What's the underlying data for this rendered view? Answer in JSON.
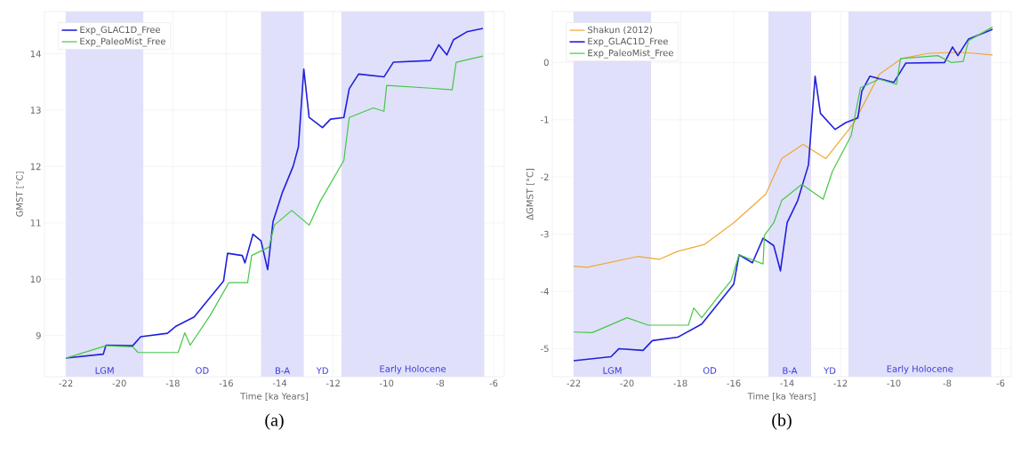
{
  "chart_data": [
    {
      "type": "line",
      "xlabel": "Time [ka Years]",
      "ylabel": "GMST [°C]",
      "xlim": [
        -22.8,
        -5.6
      ],
      "ylim": [
        8.27,
        14.75
      ],
      "xticks": [
        -22,
        -20,
        -18,
        -16,
        -14,
        -12,
        -10,
        -8,
        -6
      ],
      "yticks": [
        9,
        10,
        11,
        12,
        13,
        14
      ],
      "grid": true,
      "legend": "top left",
      "marker": "none",
      "line_style": "solid",
      "bands": [
        {
          "axis": "x",
          "from": -22,
          "to": -19.1,
          "label": "LGM",
          "color": "#e0e0fa"
        },
        {
          "axis": "x",
          "from": -14.7,
          "to": -13.1,
          "label": "B-A",
          "color": "#e0e0fa"
        },
        {
          "axis": "x",
          "from": -11.7,
          "to": -6.35,
          "label": "Early Holocene",
          "color": "#e0e0fa"
        }
      ],
      "annotations": [
        "OD",
        "YD",
        "(a)"
      ],
      "series": [
        {
          "name": "Exp_GLAC1D_Free",
          "color": "#2020dc",
          "x": [
            -22,
            -20.6,
            -20.5,
            -19.5,
            -19.2,
            -18.2,
            -17.9,
            -17.2,
            -16.1,
            -15.95,
            -15.4,
            -15.3,
            -15.0,
            -14.7,
            -14.45,
            -14.25,
            -13.9,
            -13.5,
            -13.3,
            -13.1,
            -12.9,
            -12.4,
            -12.1,
            -11.6,
            -11.4,
            -11.05,
            -10.1,
            -9.75,
            -8.36,
            -8.05,
            -7.75,
            -7.5,
            -7.0,
            -6.4
          ],
          "values": [
            8.6,
            8.67,
            8.83,
            8.82,
            8.98,
            9.04,
            9.16,
            9.33,
            9.97,
            10.46,
            10.42,
            10.29,
            10.8,
            10.68,
            10.17,
            11.02,
            11.54,
            12.0,
            12.35,
            13.73,
            12.87,
            12.69,
            12.84,
            12.87,
            13.38,
            13.64,
            13.59,
            13.85,
            13.88,
            14.16,
            13.98,
            14.25,
            14.39,
            14.45
          ]
        },
        {
          "name": "Exp_PaleoMist_Free",
          "color": "#44c844",
          "x": [
            -22,
            -20.5,
            -19.5,
            -19.3,
            -17.8,
            -17.55,
            -17.35,
            -16.6,
            -15.9,
            -15.2,
            -15.05,
            -14.4,
            -14.2,
            -13.55,
            -12.9,
            -12.5,
            -11.6,
            -11.4,
            -10.5,
            -10.1,
            -10.0,
            -8.36,
            -7.55,
            -7.4,
            -6.4
          ],
          "values": [
            8.6,
            8.82,
            8.8,
            8.7,
            8.7,
            9.05,
            8.83,
            9.36,
            9.94,
            9.94,
            10.42,
            10.57,
            10.96,
            11.22,
            10.96,
            11.37,
            12.11,
            12.87,
            13.04,
            12.98,
            13.44,
            13.39,
            13.36,
            13.85,
            13.96
          ]
        }
      ]
    },
    {
      "type": "line",
      "xlabel": "Time [ka Years]",
      "ylabel": "ΔGMST [°C]",
      "xlim": [
        -22.8,
        -5.6
      ],
      "ylim": [
        -5.49,
        0.89
      ],
      "xticks": [
        -22,
        -20,
        -18,
        -16,
        -14,
        -12,
        -10,
        -8,
        -6
      ],
      "yticks": [
        -5,
        -4,
        -3,
        -2,
        -1,
        0
      ],
      "grid": true,
      "legend": "top left",
      "marker": "none",
      "line_style": "solid",
      "bands": [
        {
          "axis": "x",
          "from": -22,
          "to": -19.1,
          "label": "LGM",
          "color": "#e0e0fa"
        },
        {
          "axis": "x",
          "from": -14.7,
          "to": -13.1,
          "label": "B-A",
          "color": "#e0e0fa"
        },
        {
          "axis": "x",
          "from": -11.7,
          "to": -6.35,
          "label": "Early Holocene",
          "color": "#e0e0fa"
        }
      ],
      "annotations": [
        "OD",
        "YD",
        "(b)"
      ],
      "series": [
        {
          "name": "Shakun (2012)",
          "color": "#f0a830",
          "x": [
            -22,
            -21.5,
            -19.6,
            -18.8,
            -18.1,
            -17.1,
            -16.0,
            -14.8,
            -14.2,
            -13.4,
            -12.55,
            -11.5,
            -10.55,
            -9.7,
            -8.7,
            -7.5,
            -6.3
          ],
          "values": [
            -3.56,
            -3.58,
            -3.39,
            -3.44,
            -3.3,
            -3.18,
            -2.8,
            -2.3,
            -1.68,
            -1.43,
            -1.68,
            -1.06,
            -0.21,
            0.07,
            0.16,
            0.18,
            0.13
          ]
        },
        {
          "name": "Exp_GLAC1D_Free",
          "color": "#2020dc",
          "x": [
            -22,
            -20.6,
            -20.3,
            -19.4,
            -19.05,
            -18.1,
            -17.2,
            -16.0,
            -15.8,
            -15.3,
            -14.9,
            -14.5,
            -14.25,
            -14.0,
            -13.6,
            -13.2,
            -12.95,
            -12.75,
            -12.2,
            -11.8,
            -11.35,
            -11.2,
            -10.9,
            -10.0,
            -9.55,
            -8.1,
            -7.8,
            -7.6,
            -7.2,
            -6.3
          ],
          "values": [
            -5.21,
            -5.14,
            -5.0,
            -5.03,
            -4.86,
            -4.8,
            -4.57,
            -3.87,
            -3.36,
            -3.5,
            -3.07,
            -3.2,
            -3.64,
            -2.8,
            -2.41,
            -1.79,
            -0.24,
            -0.89,
            -1.17,
            -1.05,
            -0.97,
            -0.5,
            -0.24,
            -0.35,
            -0.01,
            0,
            0.27,
            0.12,
            0.41,
            0.58
          ]
        },
        {
          "name": "Exp_PaleoMist_Free",
          "color": "#44c844",
          "x": [
            -22,
            -21.3,
            -20.0,
            -19.2,
            -17.7,
            -17.5,
            -17.2,
            -16.5,
            -16.1,
            -15.8,
            -14.9,
            -14.85,
            -14.5,
            -14.2,
            -13.45,
            -12.65,
            -12.3,
            -11.6,
            -11.25,
            -10.55,
            -9.9,
            -9.75,
            -8.35,
            -7.85,
            -7.4,
            -7.2,
            -6.3
          ],
          "values": [
            -4.71,
            -4.72,
            -4.46,
            -4.59,
            -4.59,
            -4.29,
            -4.46,
            -4.04,
            -3.81,
            -3.36,
            -3.52,
            -3.02,
            -2.8,
            -2.41,
            -2.13,
            -2.39,
            -1.9,
            -1.28,
            -0.44,
            -0.29,
            -0.38,
            0.07,
            0.12,
            0.0,
            0.02,
            0.38,
            0.62
          ]
        }
      ]
    }
  ]
}
